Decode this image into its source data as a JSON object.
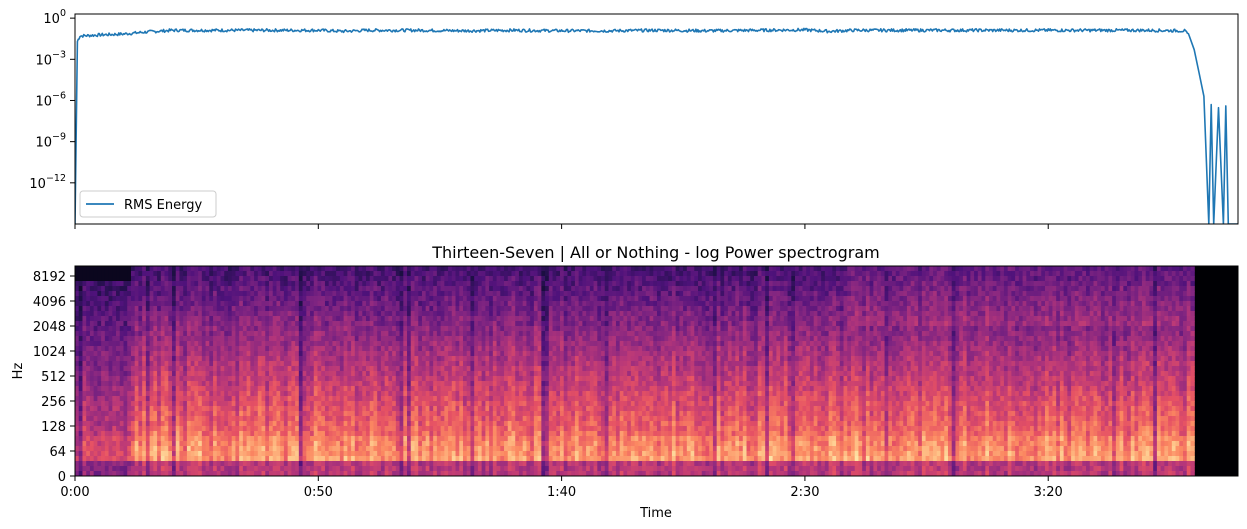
{
  "chart_data": [
    {
      "type": "line",
      "title": "",
      "xlabel": "",
      "ylabel": "",
      "yscale": "log",
      "ylim": [
        1e-15,
        2
      ],
      "xlim": [
        0,
        239
      ],
      "grid": false,
      "legend": {
        "entries": [
          "RMS Energy"
        ],
        "placement": "lower-left"
      },
      "y_tick_labels": [
        {
          "value": 1,
          "base": "10",
          "exp": "0"
        },
        {
          "value": 0.001,
          "base": "10",
          "exp": "−3"
        },
        {
          "value": 1e-06,
          "base": "10",
          "exp": "−6"
        },
        {
          "value": 1e-09,
          "base": "10",
          "exp": "−9"
        },
        {
          "value": 1e-12,
          "base": "10",
          "exp": "−12"
        }
      ],
      "series": [
        {
          "name": "RMS Energy",
          "color": "#1f77b4",
          "x": [
            0,
            0.5,
            1,
            5,
            10,
            15,
            20,
            30,
            40,
            50,
            55,
            60,
            70,
            80,
            90,
            100,
            110,
            120,
            130,
            140,
            150,
            155,
            160,
            170,
            180,
            190,
            200,
            210,
            220,
            228,
            229,
            230,
            231,
            232,
            233,
            233.5,
            234,
            235,
            236,
            236.5,
            237,
            238,
            239
          ],
          "y": [
            1e-15,
            0.02,
            0.05,
            0.06,
            0.07,
            0.1,
            0.13,
            0.13,
            0.13,
            0.13,
            0.11,
            0.13,
            0.13,
            0.12,
            0.13,
            0.12,
            0.12,
            0.13,
            0.12,
            0.13,
            0.14,
            0.11,
            0.13,
            0.13,
            0.13,
            0.13,
            0.13,
            0.13,
            0.13,
            0.12,
            0.05,
            0.005,
            0.0001,
            2e-06,
            1e-15,
            5e-07,
            1e-15,
            3e-07,
            1e-15,
            4e-07,
            1e-15,
            1e-15,
            1e-15
          ]
        }
      ]
    },
    {
      "type": "heatmap",
      "title": "Thirteen-Seven | All or Nothing - log Power spectrogram",
      "xlabel": "Time",
      "ylabel": "Hz",
      "yscale": "log",
      "xlim": [
        0,
        239
      ],
      "colormap": "magma",
      "x_ticks": [
        {
          "value": 0,
          "label": "0:00"
        },
        {
          "value": 50,
          "label": "0:50"
        },
        {
          "value": 100,
          "label": "1:40"
        },
        {
          "value": 150,
          "label": "2:30"
        },
        {
          "value": 200,
          "label": "3:20"
        }
      ],
      "y_ticks": [
        0,
        64,
        128,
        256,
        512,
        1024,
        2048,
        4096,
        8192
      ],
      "y_tick_labels": [
        "0",
        "64",
        "128",
        "256",
        "512",
        "1024",
        "2048",
        "4096",
        "8192"
      ],
      "silence_after_seconds": 230
    }
  ]
}
